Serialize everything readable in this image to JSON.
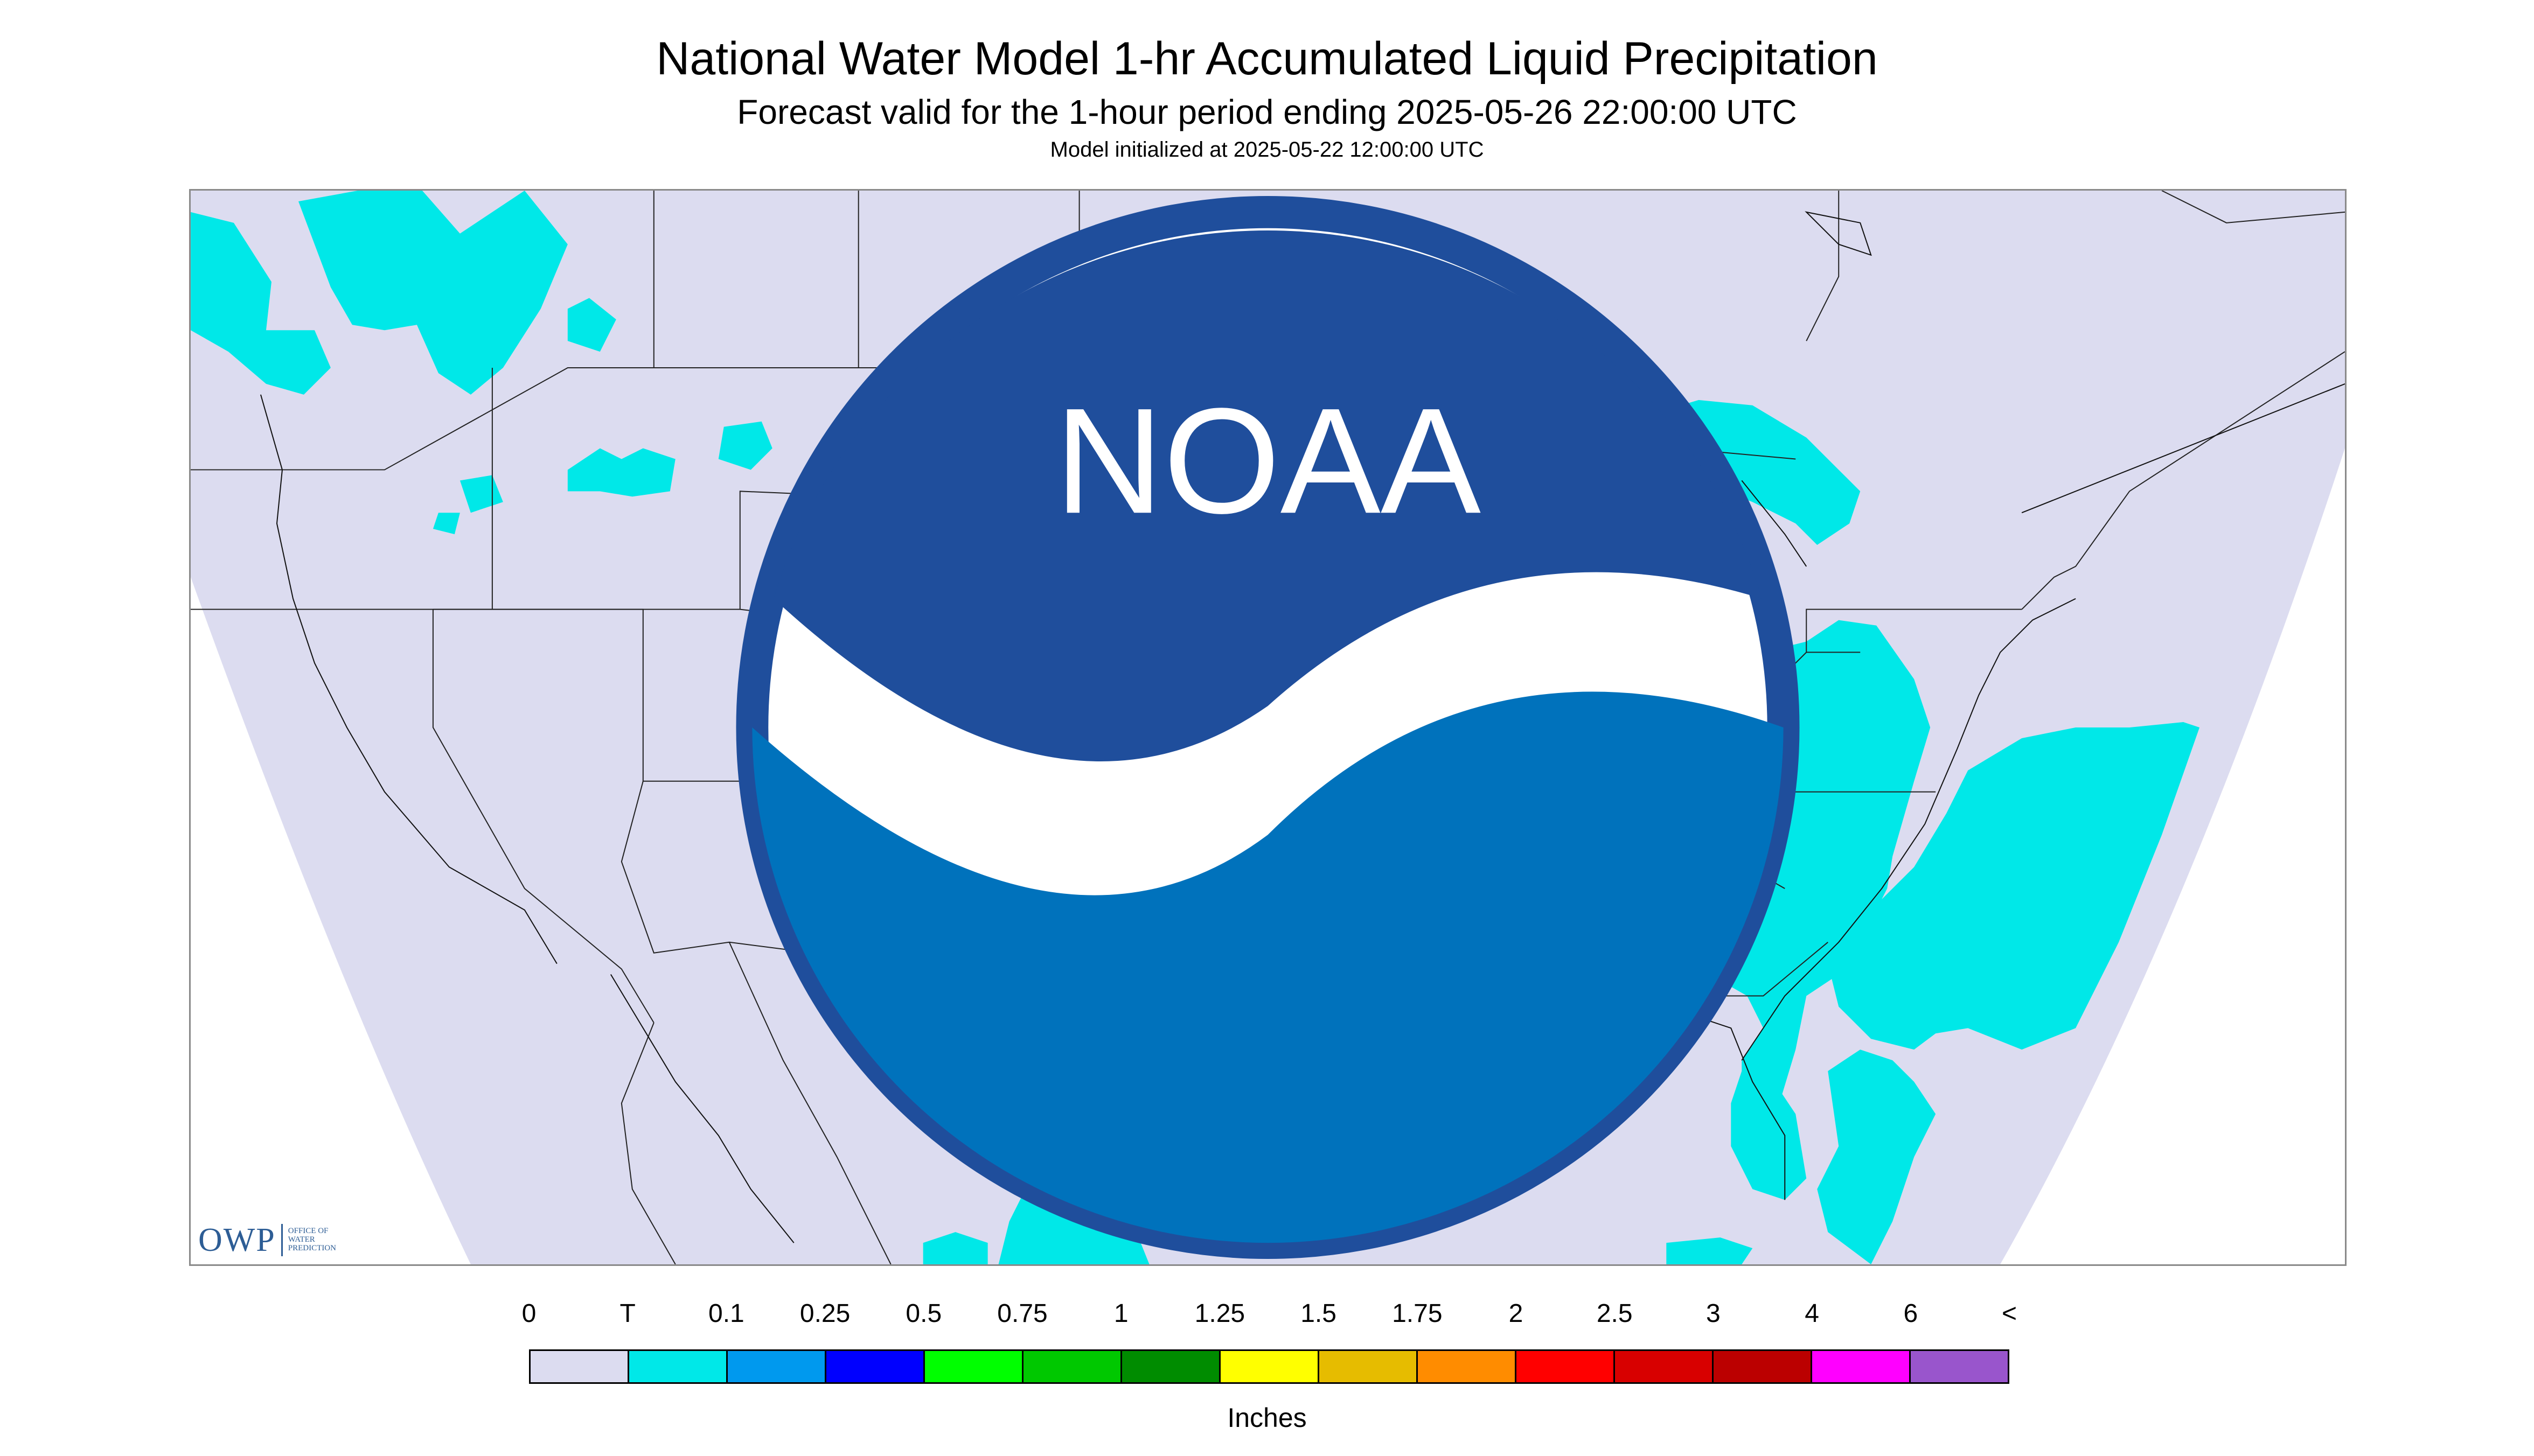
{
  "header": {
    "title": "National Water Model 1-hr Accumulated Liquid Precipitation",
    "subtitle": "Forecast valid for the 1-hour period ending 2025-05-26 22:00:00 UTC",
    "init_line": "Model initialized at 2025-05-22 12:00:00 UTC"
  },
  "logos": {
    "owp_letters": "OWP",
    "owp_line1": "OFFICE OF",
    "owp_line2": "WATER",
    "owp_line3": "PREDICTION",
    "noaa_text": "NOAA"
  },
  "legend": {
    "tick_labels": [
      "0",
      "T",
      "0.1",
      "0.25",
      "0.5",
      "0.75",
      "1",
      "1.25",
      "1.5",
      "1.75",
      "2",
      "2.5",
      "3",
      "4",
      "6",
      "<"
    ],
    "colors": [
      "#dcdcf0",
      "#00e8e8",
      "#0099ee",
      "#0000ff",
      "#00ff00",
      "#00c800",
      "#008c00",
      "#ffff00",
      "#e6bc00",
      "#ff8c00",
      "#ff0000",
      "#d80000",
      "#bb0000",
      "#ff00ff",
      "#9955cc"
    ],
    "units": "Inches"
  },
  "map_colors": {
    "background": "#dcdcf0",
    "trace": "#00e8e8",
    "tenth": "#0099ee",
    "quarter": "#0000ff",
    "borders": "#000000"
  }
}
